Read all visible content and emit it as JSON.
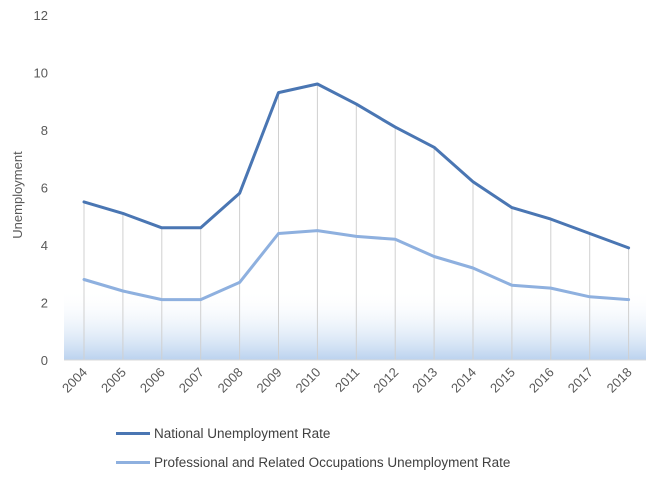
{
  "chart_data": {
    "type": "line",
    "title": "",
    "xlabel": "",
    "ylabel": "Unemployment",
    "ylim": [
      0,
      12
    ],
    "yticks": [
      "0",
      "2",
      "4",
      "6",
      "8",
      "10",
      "12"
    ],
    "categories": [
      "2004",
      "2005",
      "2006",
      "2007",
      "2008",
      "2009",
      "2010",
      "2011",
      "2012",
      "2013",
      "2014",
      "2015",
      "2016",
      "2017",
      "2018"
    ],
    "grid": "vertical",
    "legend_position": "bottom-left",
    "series": [
      {
        "name": "National Unemployment Rate",
        "color": "#4a76b3",
        "values": [
          5.5,
          5.1,
          4.6,
          4.6,
          5.8,
          9.3,
          9.6,
          8.9,
          8.1,
          7.4,
          6.2,
          5.3,
          4.9,
          4.4,
          3.9
        ]
      },
      {
        "name": "Professional and Related Occupations Unemployment Rate",
        "color": "#8eb0df",
        "values": [
          2.8,
          2.4,
          2.1,
          2.1,
          2.7,
          4.4,
          4.5,
          4.3,
          4.2,
          3.6,
          3.2,
          2.6,
          2.5,
          2.2,
          2.1
        ]
      }
    ]
  }
}
